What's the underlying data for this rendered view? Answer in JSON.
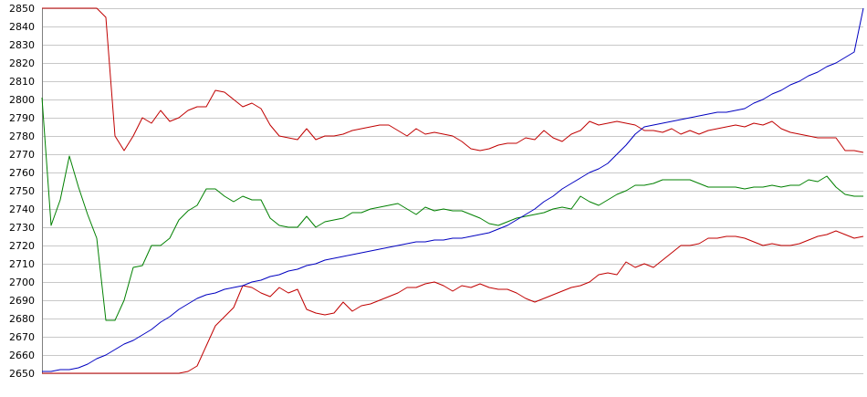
{
  "chart_data": {
    "type": "line",
    "title": "",
    "xlabel": "",
    "ylabel": "",
    "grid": true,
    "legend": "none",
    "ylim": [
      2650,
      2850
    ],
    "yticks": [
      2650,
      2660,
      2670,
      2680,
      2690,
      2700,
      2710,
      2720,
      2730,
      2740,
      2750,
      2760,
      2770,
      2780,
      2790,
      2800,
      2810,
      2820,
      2830,
      2840,
      2850
    ],
    "x": [
      0,
      2,
      4,
      6,
      8,
      10,
      12,
      14,
      16,
      18,
      20,
      22,
      24,
      26,
      28,
      30,
      32,
      34,
      36,
      38,
      40,
      42,
      44,
      46,
      48,
      50,
      52,
      54,
      56,
      58,
      60,
      62,
      64,
      66,
      68,
      70,
      72,
      74,
      76,
      78,
      80,
      82,
      84,
      86,
      88,
      90,
      92,
      94,
      96,
      98,
      100,
      102,
      104,
      106,
      108,
      110,
      112,
      114,
      116,
      118,
      120,
      122,
      124,
      126,
      128,
      130,
      132,
      134,
      136,
      138,
      140,
      142,
      144,
      146,
      148,
      150,
      152,
      154,
      156,
      158,
      160,
      162,
      164,
      166,
      168,
      170,
      172,
      174,
      176,
      178,
      180
    ],
    "series": [
      {
        "color": "#c00000",
        "values": [
          2850,
          2850,
          2850,
          2850,
          2850,
          2850,
          2850,
          2845,
          2780,
          2772,
          2780,
          2790,
          2787,
          2794,
          2788,
          2790,
          2794,
          2796,
          2796,
          2805,
          2804,
          2800,
          2796,
          2798,
          2795,
          2786,
          2780,
          2779,
          2778,
          2784,
          2778,
          2780,
          2780,
          2781,
          2783,
          2784,
          2785,
          2786,
          2786,
          2783,
          2780,
          2784,
          2781,
          2782,
          2781,
          2780,
          2777,
          2773,
          2772,
          2773,
          2775,
          2776,
          2776,
          2779,
          2778,
          2783,
          2779,
          2777,
          2781,
          2783,
          2788,
          2786,
          2787,
          2788,
          2787,
          2786,
          2783,
          2783,
          2782,
          2784,
          2781,
          2783,
          2781,
          2783,
          2784,
          2785,
          2786,
          2785,
          2787,
          2786,
          2788,
          2784,
          2782,
          2781,
          2780,
          2779,
          2779,
          2779,
          2772,
          2772,
          2771
        ]
      },
      {
        "color": "#008000",
        "values": [
          2801,
          2731,
          2745,
          2769,
          2752,
          2737,
          2724,
          2679,
          2679,
          2690,
          2708,
          2709,
          2720,
          2720,
          2724,
          2734,
          2739,
          2742,
          2751,
          2751,
          2747,
          2744,
          2747,
          2745,
          2745,
          2735,
          2731,
          2730,
          2730,
          2736,
          2730,
          2733,
          2734,
          2735,
          2738,
          2738,
          2740,
          2741,
          2742,
          2743,
          2740,
          2737,
          2741,
          2739,
          2740,
          2739,
          2739,
          2737,
          2735,
          2732,
          2731,
          2733,
          2735,
          2736,
          2737,
          2738,
          2740,
          2741,
          2740,
          2747,
          2744,
          2742,
          2745,
          2748,
          2750,
          2753,
          2753,
          2754,
          2756,
          2756,
          2756,
          2756,
          2754,
          2752,
          2752,
          2752,
          2752,
          2751,
          2752,
          2752,
          2753,
          2752,
          2753,
          2753,
          2756,
          2755,
          2758,
          2752,
          2748,
          2747,
          2747
        ]
      },
      {
        "color": "#c00000",
        "values": [
          2650,
          2650,
          2650,
          2650,
          2650,
          2650,
          2650,
          2650,
          2650,
          2650,
          2650,
          2650,
          2650,
          2650,
          2650,
          2650,
          2651,
          2654,
          2665,
          2676,
          2681,
          2686,
          2698,
          2697,
          2694,
          2692,
          2697,
          2694,
          2696,
          2685,
          2683,
          2682,
          2683,
          2689,
          2684,
          2687,
          2688,
          2690,
          2692,
          2694,
          2697,
          2697,
          2699,
          2700,
          2698,
          2695,
          2698,
          2697,
          2699,
          2697,
          2696,
          2696,
          2694,
          2691,
          2689,
          2691,
          2693,
          2695,
          2697,
          2698,
          2700,
          2704,
          2705,
          2704,
          2711,
          2708,
          2710,
          2708,
          2712,
          2716,
          2720,
          2720,
          2721,
          2724,
          2724,
          2725,
          2725,
          2724,
          2722,
          2720,
          2721,
          2720,
          2720,
          2721,
          2723,
          2725,
          2726,
          2728,
          2726,
          2724,
          2725
        ]
      },
      {
        "color": "#0000c0",
        "values": [
          2651,
          2651,
          2652,
          2652,
          2653,
          2655,
          2658,
          2660,
          2663,
          2666,
          2668,
          2671,
          2674,
          2678,
          2681,
          2685,
          2688,
          2691,
          2693,
          2694,
          2696,
          2697,
          2698,
          2700,
          2701,
          2703,
          2704,
          2706,
          2707,
          2709,
          2710,
          2712,
          2713,
          2714,
          2715,
          2716,
          2717,
          2718,
          2719,
          2720,
          2721,
          2722,
          2722,
          2723,
          2723,
          2724,
          2724,
          2725,
          2726,
          2727,
          2729,
          2731,
          2734,
          2737,
          2740,
          2744,
          2747,
          2751,
          2754,
          2757,
          2760,
          2762,
          2765,
          2770,
          2775,
          2781,
          2785,
          2786,
          2787,
          2788,
          2789,
          2790,
          2791,
          2792,
          2793,
          2793,
          2794,
          2795,
          2798,
          2800,
          2803,
          2805,
          2808,
          2810,
          2813,
          2815,
          2818,
          2820,
          2823,
          2826,
          2850
        ]
      }
    ]
  }
}
